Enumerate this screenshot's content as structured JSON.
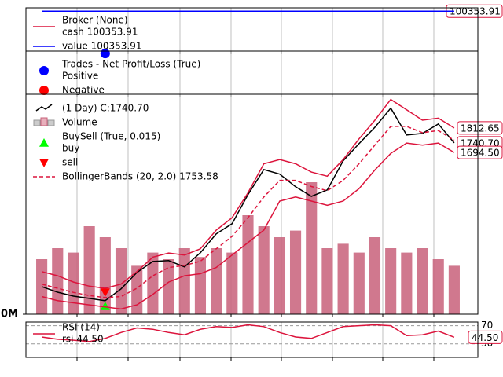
{
  "chart_data": [
    {
      "type": "line",
      "title": "Broker (None)",
      "categories": [
        null,
        null,
        null,
        null,
        null,
        null,
        null,
        null,
        null,
        null,
        null,
        null,
        null,
        null,
        null,
        null,
        null,
        null,
        null,
        null,
        null,
        null,
        null,
        null,
        null,
        null,
        null
      ],
      "ylim": [
        99800,
        100400
      ],
      "series": [
        {
          "name": "cash 100353.91",
          "color": "#dc143c",
          "end_label": "100353.91",
          "values": [
            100353.91,
            100353.91,
            100353.91,
            100353.91,
            100353.91,
            100353.91,
            100353.91,
            100353.91,
            100353.91,
            100353.91,
            100353.91,
            100353.91,
            100353.91,
            100353.91,
            100353.91,
            100353.91,
            100353.91,
            100353.91,
            100353.91,
            100353.91,
            100353.91,
            100353.91,
            100353.91,
            100353.91,
            100353.91,
            100353.91,
            100353.91
          ]
        },
        {
          "name": "value 100353.91",
          "color": "#0000ff",
          "values": [
            100353.91,
            100353.91,
            100353.91,
            100353.91,
            100353.91,
            100353.91,
            100353.91,
            100353.91,
            100353.91,
            100353.91,
            100353.91,
            100353.91,
            100353.91,
            100353.91,
            100353.91,
            100353.91,
            100353.91,
            100353.91,
            100353.91,
            100353.91,
            100353.91,
            100353.91,
            100353.91,
            100353.91,
            100353.91,
            100353.91,
            100353.91
          ]
        }
      ]
    },
    {
      "type": "scatter",
      "title": "Trades - Net Profit/Loss (True)",
      "categories": [
        null,
        null,
        null,
        null,
        null,
        null,
        null,
        null,
        null,
        null,
        null,
        null,
        null,
        null,
        null,
        null,
        null,
        null,
        null,
        null,
        null,
        null,
        null,
        null,
        null,
        null,
        null
      ],
      "ylim": [
        -400,
        400
      ],
      "series": [
        {
          "name": "Positive",
          "color": "#0000ff",
          "marker": "o",
          "values": [
            null,
            null,
            null,
            null,
            353.91,
            null,
            null,
            null,
            null,
            null,
            null,
            null,
            null,
            null,
            null,
            null,
            null,
            null,
            null,
            null,
            null,
            null,
            null,
            null,
            null,
            null,
            null
          ]
        },
        {
          "name": "Negative",
          "color": "#ff0000",
          "marker": "o",
          "values": [
            null,
            null,
            null,
            null,
            null,
            null,
            null,
            null,
            null,
            null,
            null,
            null,
            null,
            null,
            null,
            null,
            null,
            null,
            null,
            null,
            null,
            null,
            null,
            null,
            null,
            null,
            null
          ]
        }
      ]
    },
    {
      "type": "line",
      "categories": [
        null,
        null,
        null,
        null,
        null,
        null,
        null,
        null,
        null,
        null,
        null,
        null,
        null,
        null,
        null,
        null,
        null,
        null,
        null,
        null,
        null,
        null,
        null,
        null,
        null,
        null,
        null
      ],
      "ylim": [
        915,
        1975
      ],
      "y2lim": [
        0,
        100
      ],
      "y2ticks": [
        {
          "value": 0,
          "label": "0M"
        }
      ],
      "series": [
        {
          "name": "(1 Day) C:1740.70",
          "color": "#000000",
          "end_label": "1740.70",
          "values": [
            1048,
            1021,
            1002,
            991,
            980,
            1037,
            1116,
            1169,
            1173,
            1143,
            1211,
            1302,
            1351,
            1491,
            1612,
            1590,
            1529,
            1483,
            1514,
            1654,
            1737,
            1816,
            1908,
            1779,
            1786,
            1832,
            1740.7
          ]
        },
        {
          "name": "Volume",
          "type": "bar",
          "axis": "y2",
          "color": "#c8607a",
          "values": [
            25,
            30,
            28,
            40,
            35,
            30,
            22,
            28,
            25,
            30,
            26,
            30,
            28,
            45,
            40,
            35,
            38,
            60,
            30,
            32,
            28,
            35,
            30,
            28,
            30,
            25,
            22
          ]
        },
        {
          "name": "buy",
          "group": "BuySell (True, 0.015)",
          "type": "scatter",
          "marker": "^",
          "color": "#00ff00",
          "values": [
            null,
            null,
            null,
            null,
            953,
            null,
            null,
            null,
            null,
            null,
            null,
            null,
            null,
            null,
            null,
            null,
            null,
            null,
            null,
            null,
            null,
            null,
            null,
            null,
            null,
            null,
            null
          ]
        },
        {
          "name": "sell",
          "type": "scatter",
          "marker": "v",
          "color": "#ff0000",
          "values": [
            null,
            null,
            null,
            null,
            1021,
            null,
            null,
            null,
            null,
            null,
            null,
            null,
            null,
            null,
            null,
            null,
            null,
            null,
            null,
            null,
            null,
            null,
            null,
            null,
            null,
            null,
            null
          ]
        },
        {
          "name": "BollingerBands (20, 2.0) 1753.58",
          "type": "bands",
          "color": "#dc143c",
          "values": [
            1060,
            1040,
            1020,
            1005,
            995,
            1000,
            1040,
            1100,
            1140,
            1150,
            1170,
            1230,
            1290,
            1380,
            1480,
            1560,
            1560,
            1530,
            1510,
            1560,
            1640,
            1730,
            1820,
            1820,
            1790,
            1800,
            1753.58
          ],
          "upper": [
            1120,
            1100,
            1070,
            1050,
            1040,
            1060,
            1120,
            1190,
            1210,
            1200,
            1230,
            1320,
            1380,
            1500,
            1640,
            1660,
            1640,
            1600,
            1580,
            1660,
            1760,
            1850,
            1950,
            1900,
            1850,
            1860,
            1812.65
          ],
          "upper_label": "1812.65",
          "lower": [
            1000,
            980,
            970,
            960,
            950,
            940,
            960,
            1010,
            1070,
            1100,
            1110,
            1140,
            1200,
            1260,
            1320,
            1460,
            1480,
            1460,
            1440,
            1460,
            1520,
            1610,
            1690,
            1740,
            1730,
            1740,
            1694.5
          ],
          "lower_label": "1694.50"
        }
      ]
    },
    {
      "type": "line",
      "title": "RSI (14)",
      "categories": [
        null,
        null,
        null,
        null,
        null,
        null,
        null,
        null,
        null,
        null,
        null,
        null,
        null,
        null,
        null,
        null,
        null,
        null,
        null,
        null,
        null,
        null,
        null,
        null,
        null,
        null,
        null
      ],
      "ylim": [
        0,
        78
      ],
      "yticks": [
        30,
        70
      ],
      "series": [
        {
          "name": "rsi 44.50",
          "color": "#dc143c",
          "end_label": "44.50",
          "values": [
            45,
            40,
            38,
            35,
            42,
            55,
            65,
            62,
            55,
            50,
            62,
            68,
            66,
            72,
            68,
            55,
            45,
            42,
            55,
            68,
            70,
            72,
            70,
            48,
            50,
            58,
            44.5
          ]
        }
      ]
    }
  ]
}
